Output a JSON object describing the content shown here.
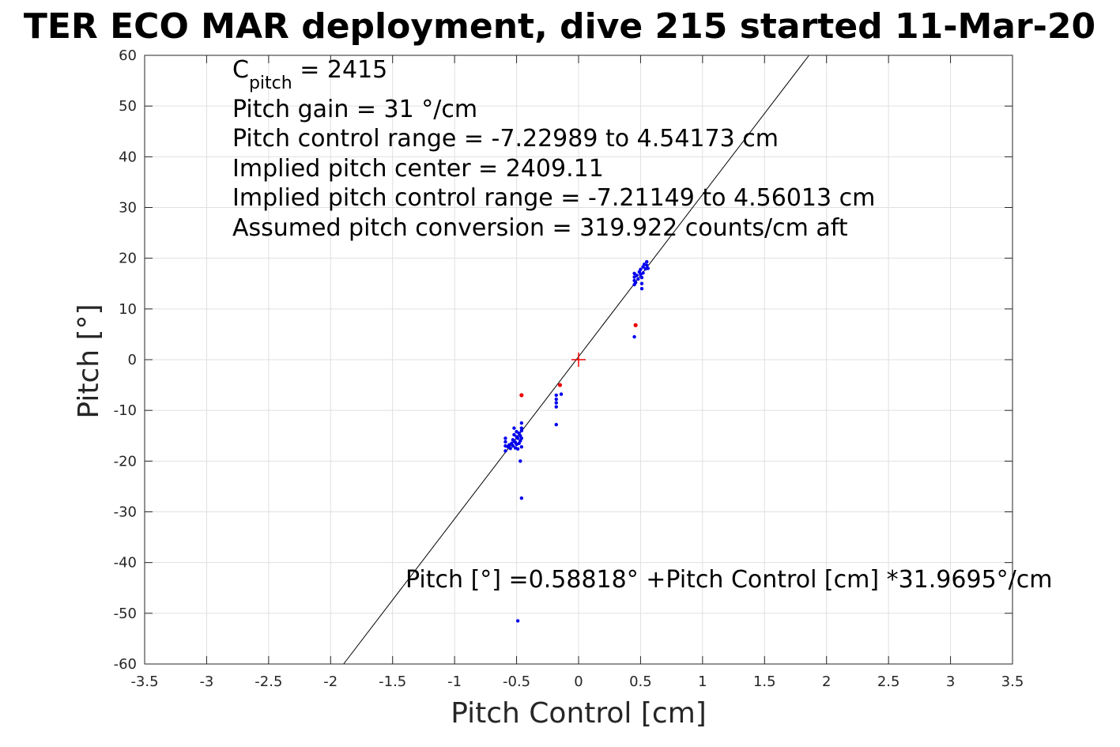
{
  "chart_data": {
    "type": "scatter",
    "title": "TER ECO MAR deployment, dive 215 started 11-Mar-20",
    "xlabel": "Pitch Control [cm]",
    "ylabel": "Pitch [°]",
    "xlim": [
      -3.5,
      3.5
    ],
    "ylim": [
      -60,
      60
    ],
    "xticks": [
      -3.5,
      -3,
      -2.5,
      -2,
      -1.5,
      -1,
      -0.5,
      0,
      0.5,
      1,
      1.5,
      2,
      2.5,
      3,
      3.5
    ],
    "xtick_labels": [
      "-3.5",
      "-3",
      "-2.5",
      "-2",
      "-1.5",
      "-1",
      "-0.5",
      "0",
      "0.5",
      "1",
      "1.5",
      "2",
      "2.5",
      "3",
      "3.5"
    ],
    "yticks": [
      -60,
      -50,
      -40,
      -30,
      -20,
      -10,
      0,
      10,
      20,
      30,
      40,
      50,
      60
    ],
    "ytick_labels": [
      "-60",
      "-50",
      "-40",
      "-30",
      "-20",
      "-10",
      "0",
      "10",
      "20",
      "30",
      "40",
      "50",
      "60"
    ],
    "grid": true,
    "colors": {
      "blue_points": "#0000ee",
      "red_points": "#ee0000",
      "fit_line": "#000000",
      "center_marker": "#ee0000",
      "grid": "#e0e0e0",
      "axes": "#262626"
    },
    "fit_line": {
      "intercept": 0.58818,
      "slope": 31.9695
    },
    "center_marker": {
      "x": 0,
      "y": 0
    },
    "series": [
      {
        "marker": "dot",
        "color": "blue",
        "points": [
          [
            -0.59,
            -15.5
          ],
          [
            -0.59,
            -16.2
          ],
          [
            -0.59,
            -17.0
          ],
          [
            -0.59,
            -18.0
          ],
          [
            -0.57,
            -17.2
          ],
          [
            -0.56,
            -16.8
          ],
          [
            -0.55,
            -17.5
          ],
          [
            -0.54,
            -16.5
          ],
          [
            -0.53,
            -17.0
          ],
          [
            -0.53,
            -15.8
          ],
          [
            -0.52,
            -16.0
          ],
          [
            -0.52,
            -14.8
          ],
          [
            -0.52,
            -13.5
          ],
          [
            -0.51,
            -17.4
          ],
          [
            -0.51,
            -16.3
          ],
          [
            -0.5,
            -15.2
          ],
          [
            -0.5,
            -14.2
          ],
          [
            -0.5,
            -16.7
          ],
          [
            -0.49,
            -17.6
          ],
          [
            -0.49,
            -15.5
          ],
          [
            -0.48,
            -16.5
          ],
          [
            -0.48,
            -14.5
          ],
          [
            -0.47,
            -15.0
          ],
          [
            -0.47,
            -16.0
          ],
          [
            -0.46,
            -13.5
          ],
          [
            -0.46,
            -12.5
          ],
          [
            -0.46,
            -14.0
          ],
          [
            -0.46,
            -15.5
          ],
          [
            -0.46,
            -17.2
          ],
          [
            -0.47,
            -20.0
          ],
          [
            -0.46,
            -27.3
          ],
          [
            -0.49,
            -51.5
          ],
          [
            -0.18,
            -7.0
          ],
          [
            -0.18,
            -7.8
          ],
          [
            -0.18,
            -8.5
          ],
          [
            -0.18,
            -9.3
          ],
          [
            -0.18,
            -12.8
          ],
          [
            -0.14,
            -6.8
          ],
          [
            0.45,
            4.5
          ],
          [
            0.45,
            14.8
          ],
          [
            0.45,
            15.6
          ],
          [
            0.45,
            16.3
          ],
          [
            0.45,
            17.0
          ],
          [
            0.46,
            15.2
          ],
          [
            0.47,
            16.6
          ],
          [
            0.48,
            15.9
          ],
          [
            0.49,
            17.3
          ],
          [
            0.5,
            16.8
          ],
          [
            0.5,
            17.8
          ],
          [
            0.51,
            15.0
          ],
          [
            0.51,
            14.0
          ],
          [
            0.51,
            16.2
          ],
          [
            0.52,
            18.3
          ],
          [
            0.52,
            17.1
          ],
          [
            0.53,
            18.8
          ],
          [
            0.54,
            17.9
          ],
          [
            0.55,
            18.6
          ],
          [
            0.55,
            19.3
          ],
          [
            0.56,
            18.0
          ]
        ]
      },
      {
        "marker": "dot",
        "color": "red",
        "points": [
          [
            -0.46,
            -7.0
          ],
          [
            -0.15,
            -5.0
          ],
          [
            0.46,
            6.8
          ]
        ]
      }
    ],
    "annotations": {
      "c_pitch_main": "C",
      "c_pitch_sub": "pitch",
      "c_pitch_value": " = 2415",
      "pitch_gain": "Pitch gain = 31 °/cm",
      "pitch_control_range": "Pitch control range = -7.22989 to 4.54173 cm",
      "implied_center": "Implied pitch center = 2409.11",
      "implied_range": "Implied pitch control range = -7.21149 to 4.56013 cm",
      "conversion": "Assumed pitch conversion = 319.922 counts/cm aft",
      "fit_equation": "Pitch [°] =0.58818° +Pitch Control [cm] *31.9695°/cm"
    }
  }
}
